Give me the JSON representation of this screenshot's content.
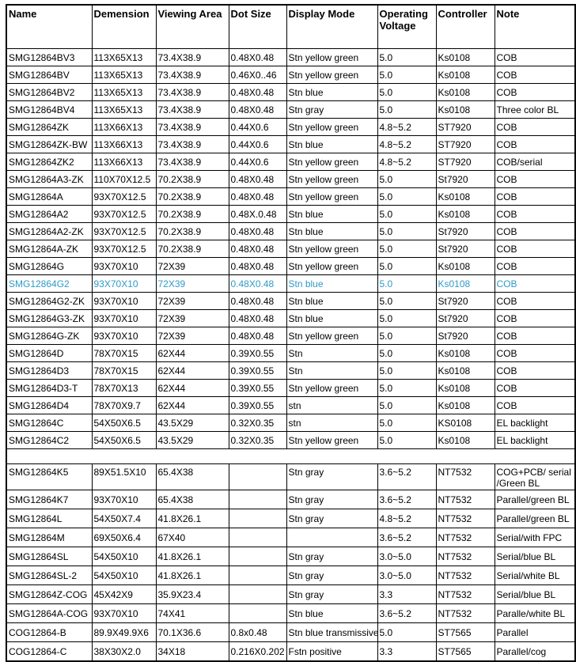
{
  "colors": {
    "text": "#000000",
    "border": "#000000",
    "background": "#ffffff",
    "highlight_blue": "#2e9ac9"
  },
  "table": {
    "columns": [
      {
        "key": "name",
        "label": "Name"
      },
      {
        "key": "dimension",
        "label": "Demension"
      },
      {
        "key": "viewing_area",
        "label": "Viewing Area"
      },
      {
        "key": "dot_size",
        "label": "Dot Size"
      },
      {
        "key": "display_mode",
        "label": "Display Mode"
      },
      {
        "key": "operating_voltage",
        "label": "Operating Voltage"
      },
      {
        "key": "controller",
        "label": "Controller"
      },
      {
        "key": "note",
        "label": "Note"
      }
    ],
    "rows": [
      {
        "cells": [
          "SMG12864BV3",
          "113X65X13",
          "73.4X38.9",
          "0.48X0.48",
          "Stn yellow green",
          "5.0",
          "Ks0108",
          "COB"
        ]
      },
      {
        "cells": [
          "SMG12864BV",
          "113X65X13",
          "73.4X38.9",
          "0.46X0..46",
          "Stn yellow green",
          "5.0",
          "Ks0108",
          "COB"
        ]
      },
      {
        "cells": [
          "SMG12864BV2",
          "113X65X13",
          "73.4X38.9",
          "0.48X0.48",
          "Stn blue",
          "5.0",
          "Ks0108",
          "COB"
        ]
      },
      {
        "cells": [
          "SMG12864BV4",
          "113X65X13",
          "73.4X38.9",
          "0.48X0.48",
          "Stn gray",
          "5.0",
          "Ks0108",
          "Three color BL"
        ]
      },
      {
        "cells": [
          "SMG12864ZK",
          "113X66X13",
          "73.4X38.9",
          "0.44X0.6",
          "Stn yellow green",
          "4.8~5.2",
          "ST7920",
          "COB"
        ]
      },
      {
        "cells": [
          "SMG12864ZK-BW",
          "113X66X13",
          "73.4X38.9",
          "0.44X0.6",
          "Stn blue",
          "4.8~5.2",
          "ST7920",
          "COB"
        ]
      },
      {
        "cells": [
          "SMG12864ZK2",
          "113X66X13",
          "73.4X38.9",
          "0.44X0.6",
          "Stn yellow green",
          "4.8~5.2",
          "ST7920",
          "COB/serial"
        ]
      },
      {
        "cells": [
          "SMG12864A3-ZK",
          "110X70X12.5",
          "70.2X38.9",
          "0.48X0.48",
          "Stn yellow green",
          "5.0",
          "St7920",
          "COB"
        ]
      },
      {
        "cells": [
          "SMG12864A",
          "93X70X12.5",
          "70.2X38.9",
          "0.48X0.48",
          "Stn yellow green",
          "5.0",
          "Ks0108",
          "COB"
        ]
      },
      {
        "cells": [
          "SMG12864A2",
          "93X70X12.5",
          "70.2X38.9",
          "0.48X.0.48",
          "Stn blue",
          "5.0",
          "Ks0108",
          "COB"
        ]
      },
      {
        "cells": [
          "SMG12864A2-ZK",
          "93X70X12.5",
          "70.2X38.9",
          "0.48X0.48",
          "Stn blue",
          "5.0",
          "St7920",
          "COB"
        ]
      },
      {
        "cells": [
          "SMG12864A-ZK",
          "93X70X12.5",
          "70.2X38.9",
          "0.48X0.48",
          "Stn yellow green",
          "5.0",
          "St7920",
          "COB"
        ]
      },
      {
        "cells": [
          "SMG12864G",
          "93X70X10",
          "72X39",
          "0.48X0.48",
          "Stn yellow green",
          "5.0",
          "Ks0108",
          "COB"
        ]
      },
      {
        "cells": [
          "SMG12864G2",
          "93X70X10",
          "72X39",
          "0.48X0.48",
          "Stn blue",
          "5.0",
          "Ks0108",
          "COB"
        ],
        "highlight": true
      },
      {
        "cells": [
          "SMG12864G2-ZK",
          "93X70X10",
          "72X39",
          "0.48X0.48",
          "Stn blue",
          "5.0",
          "St7920",
          "COB"
        ]
      },
      {
        "cells": [
          "SMG12864G3-ZK",
          "93X70X10",
          "72X39",
          "0.48X0.48",
          "Stn blue",
          "5.0",
          "St7920",
          "COB"
        ]
      },
      {
        "cells": [
          "SMG12864G-ZK",
          "93X70X10",
          "72X39",
          "0.48X0.48",
          "Stn yellow green",
          "5.0",
          "St7920",
          "COB"
        ]
      },
      {
        "cells": [
          "SMG12864D",
          "78X70X15",
          "62X44",
          "0.39X0.55",
          "Stn",
          "5.0",
          "Ks0108",
          "COB"
        ]
      },
      {
        "cells": [
          "SMG12864D3",
          "78X70X15",
          "62X44",
          "0.39X0.55",
          "Stn",
          "5.0",
          "Ks0108",
          "COB"
        ]
      },
      {
        "cells": [
          "SMG12864D3-T",
          "78X70X13",
          "62X44",
          "0.39X0.55",
          "Stn yellow green",
          "5.0",
          "Ks0108",
          "COB"
        ]
      },
      {
        "cells": [
          "SMG12864D4",
          "78X70X9.7",
          "62X44",
          "0.39X0.55",
          "stn",
          "5.0",
          "Ks0108",
          "COB"
        ]
      },
      {
        "cells": [
          "SMG12864C",
          "54X50X6.5",
          "43.5X29",
          "0.32X0.35",
          "stn",
          "5.0",
          "KS0108",
          "EL backlight"
        ]
      },
      {
        "cells": [
          "SMG12864C2",
          "54X50X6.5",
          "43.5X29",
          "0.32X0.35",
          "Stn yellow green",
          "5.0",
          "Ks0108",
          "EL backlight"
        ]
      },
      {
        "gap": true
      },
      {
        "cells": [
          "SMG12864K5",
          "89X51.5X10",
          "65.4X38",
          "",
          "Stn gray",
          "3.6~5.2",
          "NT7532",
          "COG+PCB/ serial /Green BL"
        ],
        "tall": true
      },
      {
        "cells": [
          "SMG12864K7",
          "93X70X10",
          "65.4X38",
          "",
          "Stn gray",
          "3.6~5.2",
          "NT7532",
          "Parallel/green BL"
        ]
      },
      {
        "cells": [
          "SMG12864L",
          "54X50X7.4",
          "41.8X26.1",
          "",
          "Stn gray",
          "4.8~5.2",
          "NT7532",
          "Parallel/green BL"
        ]
      },
      {
        "cells": [
          "SMG12864M",
          "69X50X6.4",
          "67X40",
          "",
          "",
          "3.6~5.2",
          "NT7532",
          "Serial/with FPC"
        ]
      },
      {
        "cells": [
          "SMG12864SL",
          "54X50X10",
          "41.8X26.1",
          "",
          "Stn gray",
          "3.0~5.0",
          "NT7532",
          "Serial/blue BL"
        ]
      },
      {
        "cells": [
          "SMG12864SL-2",
          "54X50X10",
          "41.8X26.1",
          "",
          "Stn gray",
          "3.0~5.0",
          "NT7532",
          "Serial/white BL"
        ]
      },
      {
        "cells": [
          "SMG12864Z-COG",
          "45X42X9",
          "35.9X23.4",
          "",
          "Stn gray",
          "3.3",
          "NT7532",
          "Serial/blue BL"
        ]
      },
      {
        "cells": [
          "SMG12864A-COG",
          "93X70X10",
          "74X41",
          "",
          "Stn blue",
          "3.6~5.2",
          "NT7532",
          "Paralle/white BL"
        ]
      },
      {
        "cells": [
          "COG12864-B",
          "89.9X49.9X6",
          "70.1X36.6",
          "0.8x0.48",
          "Stn blue transmissive",
          "5.0",
          "ST7565",
          "Parallel"
        ]
      },
      {
        "cells": [
          "COG12864-C",
          "38X30X2.0",
          "34X18",
          "0.216X0.202",
          "Fstn positive",
          "3.3",
          "ST7565",
          "Parallel/cog"
        ]
      }
    ]
  }
}
